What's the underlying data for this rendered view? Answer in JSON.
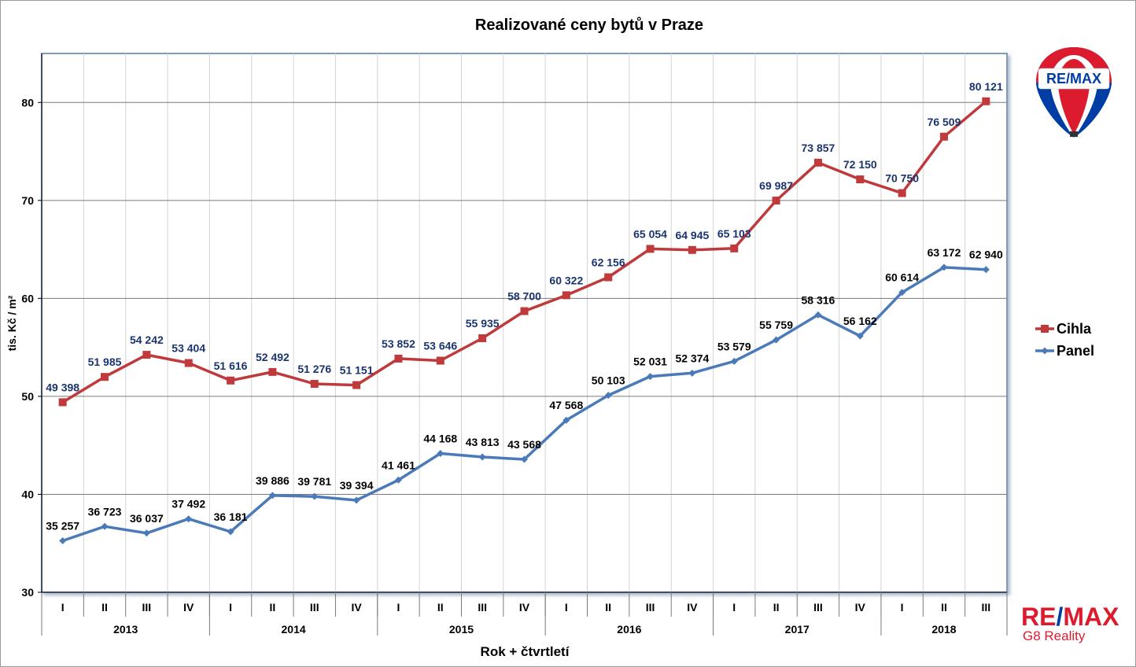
{
  "chart_data": {
    "type": "line",
    "title": "Realizované ceny bytů v Praze",
    "xlabel": "Rok + čtvrtletí",
    "ylabel": "tis. Kč / m²",
    "ylim": [
      30,
      85
    ],
    "yticks": [
      "30",
      "40",
      "50",
      "60",
      "70",
      "80"
    ],
    "grid": true,
    "legend_position": "right",
    "quarters": [
      "I",
      "II",
      "III",
      "IV",
      "I",
      "II",
      "III",
      "IV",
      "I",
      "II",
      "III",
      "IV",
      "I",
      "II",
      "III",
      "IV",
      "I",
      "II",
      "III",
      "IV",
      "I",
      "II",
      "III"
    ],
    "years": [
      {
        "label": "2013",
        "quarters": 4
      },
      {
        "label": "2014",
        "quarters": 4
      },
      {
        "label": "2015",
        "quarters": 4
      },
      {
        "label": "2016",
        "quarters": 4
      },
      {
        "label": "2017",
        "quarters": 4
      },
      {
        "label": "2018",
        "quarters": 3
      }
    ],
    "series": [
      {
        "name": "Cihla",
        "color": "#c0393b",
        "label_color": "#1a3470",
        "marker": "square",
        "values": [
          49.398,
          51.985,
          54.242,
          53.404,
          51.616,
          52.492,
          51.276,
          51.151,
          53.852,
          53.646,
          55.935,
          58.7,
          60.322,
          62.156,
          65.054,
          64.945,
          65.103,
          69.987,
          73.857,
          72.15,
          70.75,
          76.509,
          80.121
        ],
        "labels": [
          "49 398",
          "51 985",
          "54 242",
          "53 404",
          "51 616",
          "52 492",
          "51 276",
          "51 151",
          "53 852",
          "53 646",
          "55 935",
          "58 700",
          "60 322",
          "62 156",
          "65 054",
          "64 945",
          "65 103",
          "69 987",
          "73 857",
          "72 150",
          "70 750",
          "76 509",
          "80 121"
        ]
      },
      {
        "name": "Panel",
        "color": "#4a7ab8",
        "label_color": "#000000",
        "marker": "diamond",
        "values": [
          35.257,
          36.723,
          36.037,
          37.492,
          36.181,
          39.886,
          39.781,
          39.394,
          41.461,
          44.168,
          43.813,
          43.568,
          47.568,
          50.103,
          52.031,
          52.374,
          53.579,
          55.759,
          58.316,
          56.162,
          60.614,
          63.172,
          62.94
        ],
        "labels": [
          "35 257",
          "36 723",
          "36 037",
          "37 492",
          "36 181",
          "39 886",
          "39 781",
          "39 394",
          "41 461",
          "44 168",
          "43 813",
          "43 568",
          "47 568",
          "50 103",
          "52 031",
          "52 374",
          "53 579",
          "55 759",
          "58 316",
          "56 162",
          "60 614",
          "63 172",
          "62 940"
        ]
      }
    ]
  },
  "branding": {
    "balloon_text": "RE/MAX",
    "name_part1": "RE",
    "name_slash": "/",
    "name_part2": "MAX",
    "subtitle": "G8 Reality"
  }
}
